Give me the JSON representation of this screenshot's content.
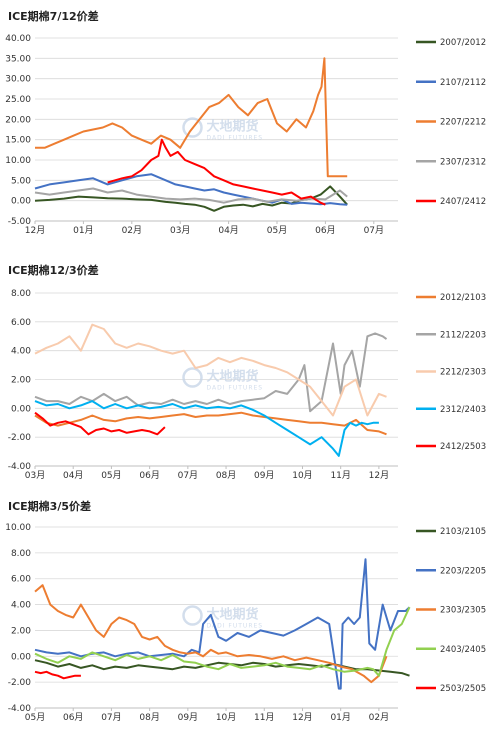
{
  "watermark": {
    "brand": "大地期货",
    "sub": "DADI FUTURES"
  },
  "chart_data": [
    {
      "type": "line",
      "title": "ICE期棉7/12价差",
      "x_ticks": [
        "12月",
        "01月",
        "02月",
        "03月",
        "04月",
        "05月",
        "06月",
        "07月"
      ],
      "ylim": [
        -5,
        40
      ],
      "y_ticks": [
        "40.00",
        "35.00",
        "30.00",
        "25.00",
        "20.00",
        "15.00",
        "10.00",
        "5.00",
        "0.00",
        "-5.00"
      ],
      "grid": true,
      "legend_position": "right",
      "series": [
        {
          "name": "2007/2012",
          "color": "#375623",
          "x": [
            0,
            0.3,
            0.6,
            0.9,
            1.2,
            1.5,
            1.8,
            2.1,
            2.4,
            2.7,
            2.9,
            3.1,
            3.3,
            3.5,
            3.7,
            3.9,
            4.1,
            4.3,
            4.5,
            4.7,
            4.9,
            5.1,
            5.3,
            5.5,
            5.7,
            5.9,
            6.1,
            6.3,
            6.45
          ],
          "y": [
            0,
            0.2,
            0.5,
            1,
            0.8,
            0.6,
            0.5,
            0.3,
            0.2,
            -0.3,
            -0.5,
            -0.8,
            -1,
            -1.5,
            -2.5,
            -1.5,
            -1.2,
            -1,
            -1.4,
            -0.8,
            -1.2,
            -0.5,
            -0.7,
            0.2,
            0.5,
            1.5,
            3.5,
            1,
            -1
          ]
        },
        {
          "name": "2107/2112",
          "color": "#4472c4",
          "x": [
            0,
            0.3,
            0.6,
            0.9,
            1.2,
            1.5,
            1.8,
            2.1,
            2.4,
            2.7,
            2.9,
            3.1,
            3.3,
            3.5,
            3.7,
            3.9,
            4.1,
            4.3,
            4.5,
            4.7,
            4.9,
            5.1,
            5.3,
            5.5,
            5.7,
            5.9,
            6.1,
            6.3,
            6.45
          ],
          "y": [
            3,
            4,
            4.5,
            5,
            5.5,
            4,
            5,
            6,
            6.5,
            5,
            4,
            3.5,
            3,
            2.5,
            2.8,
            2,
            1.5,
            1,
            0.5,
            0,
            -0.5,
            0.3,
            -0.8,
            -0.5,
            -0.7,
            -0.9,
            -0.6,
            -0.9,
            -1
          ]
        },
        {
          "name": "2207/2212",
          "color": "#ed7d31",
          "x": [
            0,
            0.2,
            0.4,
            0.6,
            0.8,
            1,
            1.2,
            1.4,
            1.6,
            1.8,
            2,
            2.2,
            2.4,
            2.6,
            2.8,
            3,
            3.2,
            3.4,
            3.6,
            3.8,
            4,
            4.2,
            4.4,
            4.6,
            4.8,
            5,
            5.2,
            5.4,
            5.6,
            5.75,
            5.85,
            5.92,
            5.98,
            6.05,
            6.15,
            6.3,
            6.45
          ],
          "y": [
            13,
            13,
            14,
            15,
            16,
            17,
            17.5,
            18,
            19,
            18,
            16,
            15,
            14,
            16,
            15,
            13,
            17,
            20,
            23,
            24,
            26,
            23,
            21,
            24,
            25,
            19,
            17,
            20,
            18,
            22,
            26,
            28,
            35,
            6,
            6,
            6,
            6
          ]
        },
        {
          "name": "2307/2312",
          "color": "#a5a5a5",
          "x": [
            0,
            0.3,
            0.6,
            0.9,
            1.2,
            1.5,
            1.8,
            2.1,
            2.4,
            2.7,
            3,
            3.3,
            3.6,
            3.9,
            4.2,
            4.5,
            4.8,
            5.1,
            5.4,
            5.7,
            6,
            6.3,
            6.45
          ],
          "y": [
            2,
            1.5,
            2,
            2.5,
            3,
            2,
            2.5,
            1.5,
            1,
            0.5,
            0.3,
            0.5,
            0.2,
            -0.5,
            0.3,
            0.5,
            -0.3,
            0.3,
            0,
            0.5,
            0.3,
            2.5,
            1
          ]
        },
        {
          "name": "2407/2412",
          "color": "#ff0000",
          "x": [
            1.5,
            1.8,
            2,
            2.2,
            2.4,
            2.55,
            2.62,
            2.7,
            2.8,
            2.95,
            3.1,
            3.3,
            3.5,
            3.7,
            3.9,
            4.1,
            4.3,
            4.5,
            4.7,
            4.9,
            5.1,
            5.3,
            5.5,
            5.7,
            5.9,
            6.0
          ],
          "y": [
            4.5,
            5.5,
            6,
            7.5,
            10,
            11,
            15,
            13,
            11,
            12,
            10,
            9,
            8,
            6,
            5,
            4,
            3.5,
            3,
            2.5,
            2,
            1.5,
            2,
            0.5,
            1,
            -0.5,
            -1
          ]
        }
      ]
    },
    {
      "type": "line",
      "title": "ICE期棉12/3价差",
      "x_ticks": [
        "03月",
        "04月",
        "05月",
        "06月",
        "07月",
        "08月",
        "09月",
        "10月",
        "11月",
        "12月"
      ],
      "ylim": [
        -4,
        8
      ],
      "y_ticks": [
        "8.00",
        "6.00",
        "4.00",
        "2.00",
        "0.00",
        "-2.00",
        "-4.00"
      ],
      "grid": true,
      "legend_position": "right",
      "series": [
        {
          "name": "2012/2103",
          "color": "#ed7d31",
          "x": [
            0,
            0.3,
            0.6,
            0.9,
            1.2,
            1.5,
            1.8,
            2.1,
            2.4,
            2.7,
            3,
            3.3,
            3.6,
            3.9,
            4.2,
            4.5,
            4.8,
            5.1,
            5.4,
            5.7,
            6,
            6.3,
            6.6,
            6.9,
            7.2,
            7.5,
            7.8,
            8.1,
            8.4,
            8.7,
            9,
            9.2
          ],
          "y": [
            -0.5,
            -1,
            -1.2,
            -1,
            -0.8,
            -0.5,
            -0.8,
            -0.9,
            -0.7,
            -0.6,
            -0.7,
            -0.6,
            -0.5,
            -0.4,
            -0.6,
            -0.5,
            -0.5,
            -0.4,
            -0.3,
            -0.5,
            -0.6,
            -0.7,
            -0.8,
            -0.9,
            -1,
            -1,
            -1.1,
            -1.2,
            -0.8,
            -1.5,
            -1.6,
            -1.8
          ]
        },
        {
          "name": "2112/2203",
          "color": "#a5a5a5",
          "x": [
            0,
            0.3,
            0.6,
            0.9,
            1.2,
            1.5,
            1.8,
            2.1,
            2.4,
            2.7,
            3,
            3.3,
            3.6,
            3.9,
            4.2,
            4.5,
            4.8,
            5.1,
            5.4,
            5.7,
            6,
            6.3,
            6.6,
            6.9,
            7.05,
            7.2,
            7.5,
            7.8,
            8.0,
            8.1,
            8.3,
            8.5,
            8.7,
            8.9,
            9.1,
            9.2
          ],
          "y": [
            0.8,
            0.5,
            0.5,
            0.3,
            0.8,
            0.5,
            1,
            0.5,
            0.8,
            0.2,
            0.4,
            0.3,
            0.6,
            0.3,
            0.5,
            0.3,
            0.6,
            0.3,
            0.5,
            0.6,
            0.7,
            1.2,
            1,
            2,
            3,
            -0.2,
            0.5,
            4.5,
            1,
            3,
            4,
            1.5,
            5,
            5.2,
            5,
            4.8
          ]
        },
        {
          "name": "2212/2303",
          "color": "#f8cbad",
          "x": [
            0,
            0.3,
            0.6,
            0.9,
            1.2,
            1.5,
            1.8,
            2.1,
            2.4,
            2.7,
            3,
            3.3,
            3.6,
            3.9,
            4.2,
            4.5,
            4.8,
            5.1,
            5.4,
            5.7,
            6,
            6.3,
            6.6,
            6.9,
            7.2,
            7.5,
            7.8,
            8.1,
            8.4,
            8.7,
            9,
            9.2
          ],
          "y": [
            3.8,
            4.2,
            4.5,
            5,
            4,
            5.8,
            5.5,
            4.5,
            4.2,
            4.5,
            4.3,
            4,
            3.8,
            4,
            2.8,
            3,
            3.5,
            3.2,
            3.5,
            3.3,
            3,
            2.8,
            2.5,
            2,
            1.5,
            0.5,
            -0.5,
            1.5,
            2,
            -0.5,
            1,
            0.8
          ]
        },
        {
          "name": "2312/2403",
          "color": "#00b0f0",
          "x": [
            0,
            0.3,
            0.6,
            0.9,
            1.2,
            1.5,
            1.8,
            2.1,
            2.4,
            2.7,
            3,
            3.3,
            3.6,
            3.9,
            4.2,
            4.5,
            4.8,
            5.1,
            5.4,
            5.7,
            6,
            6.3,
            6.6,
            6.9,
            7.2,
            7.5,
            7.8,
            7.95,
            8.1,
            8.25,
            8.4,
            8.55,
            8.7,
            8.85,
            9
          ],
          "y": [
            0.5,
            0.2,
            0.3,
            0,
            0.2,
            0.5,
            0,
            0.3,
            0,
            0.2,
            0,
            0.1,
            0.3,
            0,
            0.2,
            0,
            0.1,
            0,
            0.2,
            -0.1,
            -0.5,
            -1,
            -1.5,
            -2,
            -2.5,
            -2,
            -2.8,
            -3.3,
            -1.5,
            -1,
            -1.2,
            -1,
            -1.1,
            -1,
            -1
          ]
        },
        {
          "name": "2412/2503",
          "color": "#ff0000",
          "x": [
            0,
            0.2,
            0.4,
            0.6,
            0.8,
            1,
            1.2,
            1.4,
            1.6,
            1.8,
            2,
            2.2,
            2.4,
            2.6,
            2.8,
            3.0,
            3.2,
            3.4
          ],
          "y": [
            -0.3,
            -0.7,
            -1.2,
            -1,
            -0.9,
            -1.1,
            -1.3,
            -1.8,
            -1.5,
            -1.4,
            -1.6,
            -1.5,
            -1.7,
            -1.6,
            -1.5,
            -1.6,
            -1.8,
            -1.3
          ]
        }
      ]
    },
    {
      "type": "line",
      "title": "ICE期棉3/5价差",
      "x_ticks": [
        "05月",
        "06月",
        "07月",
        "08月",
        "09月",
        "10月",
        "11月",
        "12月",
        "01月",
        "02月"
      ],
      "ylim": [
        -4,
        10
      ],
      "y_ticks": [
        "10.00",
        "8.00",
        "6.00",
        "4.00",
        "2.00",
        "0.00",
        "-2.00",
        "-4.00"
      ],
      "grid": true,
      "legend_position": "right",
      "series": [
        {
          "name": "2103/2105",
          "color": "#375623",
          "x": [
            0,
            0.3,
            0.6,
            0.9,
            1.2,
            1.5,
            1.8,
            2.1,
            2.4,
            2.7,
            3,
            3.3,
            3.6,
            3.9,
            4.2,
            4.5,
            4.8,
            5.1,
            5.4,
            5.7,
            6,
            6.3,
            6.6,
            6.9,
            7.2,
            7.5,
            7.8,
            8.1,
            8.4,
            8.7,
            9,
            9.3,
            9.6,
            9.8
          ],
          "y": [
            -0.3,
            -0.5,
            -0.8,
            -0.6,
            -0.9,
            -0.7,
            -1,
            -0.8,
            -0.9,
            -0.7,
            -0.8,
            -0.9,
            -1,
            -0.8,
            -0.9,
            -0.7,
            -0.5,
            -0.6,
            -0.7,
            -0.5,
            -0.6,
            -0.8,
            -0.7,
            -0.6,
            -0.7,
            -0.8,
            -0.6,
            -0.8,
            -1,
            -1,
            -1.1,
            -1.2,
            -1.3,
            -1.5
          ]
        },
        {
          "name": "2203/2205",
          "color": "#4472c4",
          "x": [
            0,
            0.3,
            0.6,
            0.9,
            1.2,
            1.5,
            1.8,
            2.1,
            2.4,
            2.7,
            3,
            3.3,
            3.6,
            3.9,
            4.1,
            4.3,
            4.4,
            4.6,
            4.8,
            5,
            5.3,
            5.6,
            5.9,
            6.2,
            6.5,
            6.8,
            7.1,
            7.4,
            7.7,
            7.95,
            8.0,
            8.05,
            8.2,
            8.35,
            8.5,
            8.65,
            8.75,
            8.9,
            9.1,
            9.3,
            9.5,
            9.7,
            9.8
          ],
          "y": [
            0.5,
            0.3,
            0.2,
            0.3,
            0,
            0.2,
            0.3,
            0,
            0.2,
            0.3,
            0,
            0.1,
            0.2,
            0,
            0.5,
            0.3,
            2.5,
            3.2,
            1.5,
            1.2,
            1.8,
            1.5,
            2,
            1.8,
            1.6,
            2,
            2.5,
            3,
            2.5,
            -2.5,
            -2.5,
            2.5,
            3,
            2.5,
            3,
            7.5,
            1,
            0.5,
            4,
            2,
            3.5,
            3.5,
            3.8
          ]
        },
        {
          "name": "2303/2305",
          "color": "#ed7d31",
          "x": [
            0,
            0.2,
            0.4,
            0.6,
            0.8,
            1,
            1.2,
            1.4,
            1.6,
            1.8,
            2,
            2.2,
            2.4,
            2.6,
            2.8,
            3,
            3.2,
            3.4,
            3.6,
            3.8,
            4,
            4.2,
            4.4,
            4.6,
            4.8,
            5,
            5.3,
            5.6,
            5.9,
            6.2,
            6.5,
            6.8,
            7.1,
            7.4,
            7.7,
            8,
            8.3,
            8.6,
            8.8,
            9,
            9.2
          ],
          "y": [
            5,
            5.5,
            4,
            3.5,
            3.2,
            3,
            4,
            3,
            2,
            1.5,
            2.5,
            3,
            2.8,
            2.5,
            1.5,
            1.3,
            1.5,
            0.8,
            0.5,
            0.3,
            0.2,
            0.3,
            0,
            0.5,
            0.2,
            0.3,
            0,
            0.1,
            0,
            -0.2,
            0,
            -0.3,
            -0.1,
            -0.3,
            -0.5,
            -0.8,
            -1,
            -1.5,
            -2,
            -1.5,
            0
          ]
        },
        {
          "name": "2403/2405",
          "color": "#92d050",
          "x": [
            0,
            0.3,
            0.6,
            0.9,
            1.2,
            1.5,
            1.8,
            2.1,
            2.4,
            2.7,
            3,
            3.3,
            3.6,
            3.9,
            4.2,
            4.5,
            4.8,
            5.1,
            5.4,
            5.7,
            6,
            6.3,
            6.6,
            6.9,
            7.2,
            7.5,
            7.8,
            8.1,
            8.4,
            8.7,
            8.85,
            9,
            9.2,
            9.4,
            9.6,
            9.8
          ],
          "y": [
            0.2,
            -0.2,
            -0.5,
            0,
            -0.2,
            0.3,
            0,
            -0.3,
            0.1,
            -0.2,
            0,
            -0.3,
            0.1,
            -0.4,
            -0.5,
            -0.8,
            -1,
            -0.6,
            -0.9,
            -0.8,
            -0.7,
            -0.5,
            -0.8,
            -0.9,
            -1,
            -0.7,
            -1,
            -1.2,
            -1.1,
            -0.9,
            -1,
            -1.5,
            0.5,
            2,
            2.5,
            3.8
          ]
        },
        {
          "name": "2503/2505",
          "color": "#ff0000",
          "x": [
            0,
            0.15,
            0.3,
            0.45,
            0.6,
            0.75,
            0.9,
            1.05,
            1.2
          ],
          "y": [
            -1.2,
            -1.3,
            -1.2,
            -1.4,
            -1.5,
            -1.7,
            -1.6,
            -1.5,
            -1.5
          ]
        }
      ]
    }
  ]
}
